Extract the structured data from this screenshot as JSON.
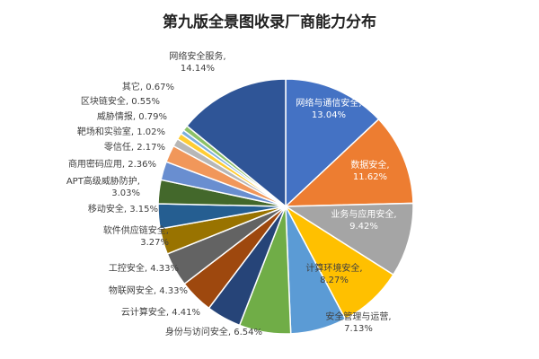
{
  "chart_data": {
    "type": "pie",
    "title": "第九版全景图收录厂商能力分布",
    "slices": [
      {
        "name": "网络与通信安全",
        "value": 13.04,
        "label": "13.04%",
        "color": "#4472C4"
      },
      {
        "name": "数据安全",
        "value": 11.62,
        "label": "11.62%",
        "color": "#ED7D31"
      },
      {
        "name": "业务与应用安全",
        "value": 9.42,
        "label": "9.42%",
        "color": "#A5A5A5"
      },
      {
        "name": "计算环境安全",
        "value": 8.27,
        "label": "8.27%",
        "color": "#FFC000"
      },
      {
        "name": "安全管理与运营",
        "value": 7.13,
        "label": "7.13%",
        "color": "#5B9BD5"
      },
      {
        "name": "身份与访问安全",
        "value": 6.54,
        "label": "6.54%",
        "color": "#70AD47"
      },
      {
        "name": "云计算安全",
        "value": 4.41,
        "label": "4.41%",
        "color": "#264478"
      },
      {
        "name": "物联网安全",
        "value": 4.33,
        "label": "4.33%",
        "color": "#9E480E"
      },
      {
        "name": "工控安全",
        "value": 4.33,
        "label": "4.33%",
        "color": "#636363"
      },
      {
        "name": "软件供应链安全",
        "value": 3.27,
        "label": "3.27%",
        "color": "#997300"
      },
      {
        "name": "移动安全",
        "value": 3.15,
        "label": "3.15%",
        "color": "#255E91"
      },
      {
        "name": "APT高级威胁防护",
        "value": 3.03,
        "label": "3.03%",
        "color": "#43682B"
      },
      {
        "name": "商用密码应用",
        "value": 2.36,
        "label": "2.36%",
        "color": "#698ED0"
      },
      {
        "name": "零信任",
        "value": 2.17,
        "label": "2.17%",
        "color": "#F1975A"
      },
      {
        "name": "靶场和实验室",
        "value": 1.02,
        "label": "1.02%",
        "color": "#B7B7B7"
      },
      {
        "name": "威胁情报",
        "value": 0.79,
        "label": "0.79%",
        "color": "#FFCD33"
      },
      {
        "name": "区块链安全",
        "value": 0.55,
        "label": "0.55%",
        "color": "#7CAFDD"
      },
      {
        "name": "其它",
        "value": 0.67,
        "label": "0.67%",
        "color": "#8CC168"
      },
      {
        "name": "网络安全服务",
        "value": 14.14,
        "label": "14.14%",
        "color": "#2F5597"
      }
    ]
  }
}
